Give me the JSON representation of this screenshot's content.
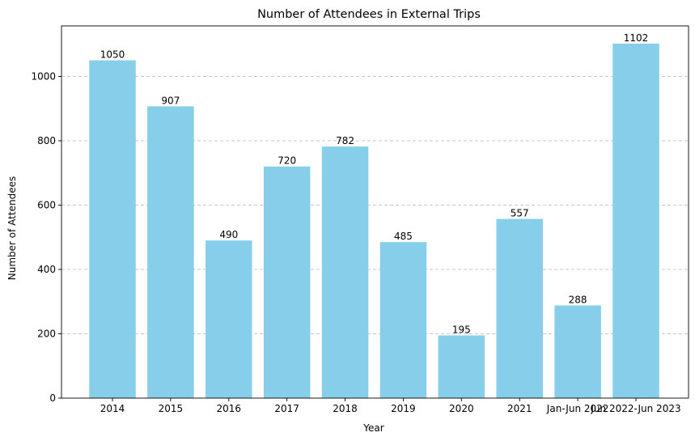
{
  "chart_data": {
    "type": "bar",
    "title": "Number of Attendees in External Trips",
    "xlabel": "Year",
    "ylabel": "Number of Attendees",
    "categories": [
      "2014",
      "2015",
      "2016",
      "2017",
      "2018",
      "2019",
      "2020",
      "2021",
      "Jan-Jun 2022",
      "Jun 2022-Jun 2023"
    ],
    "values": [
      1050,
      907,
      490,
      720,
      782,
      485,
      195,
      557,
      288,
      1102
    ],
    "ylim": [
      0,
      1157
    ],
    "yticks": [
      0,
      200,
      400,
      600,
      800,
      1000
    ],
    "grid": "y-dashed",
    "bar_color": "#87ceeb"
  }
}
